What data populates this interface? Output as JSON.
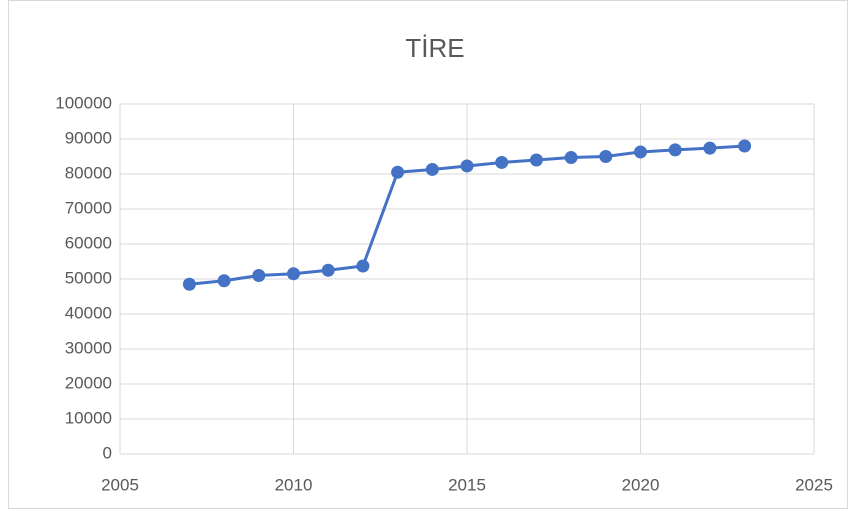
{
  "chart_data": {
    "type": "line",
    "title": "TİRE",
    "x": [
      2007,
      2008,
      2009,
      2010,
      2011,
      2012,
      2013,
      2014,
      2015,
      2016,
      2017,
      2018,
      2019,
      2020,
      2021,
      2022,
      2023
    ],
    "series": [
      {
        "color": "#4472c4",
        "values": [
          48500,
          49500,
          51000,
          51500,
          52500,
          53700,
          80500,
          81300,
          82300,
          83300,
          84000,
          84700,
          85000,
          86300,
          86900,
          87400,
          88000
        ]
      }
    ],
    "xlim": [
      2005,
      2025
    ],
    "xticks": [
      2005,
      2010,
      2015,
      2020,
      2025
    ],
    "ylim": [
      0,
      100000
    ],
    "yticks": [
      0,
      10000,
      20000,
      30000,
      40000,
      50000,
      60000,
      70000,
      80000,
      90000,
      100000
    ],
    "grid": true,
    "markers": true
  }
}
